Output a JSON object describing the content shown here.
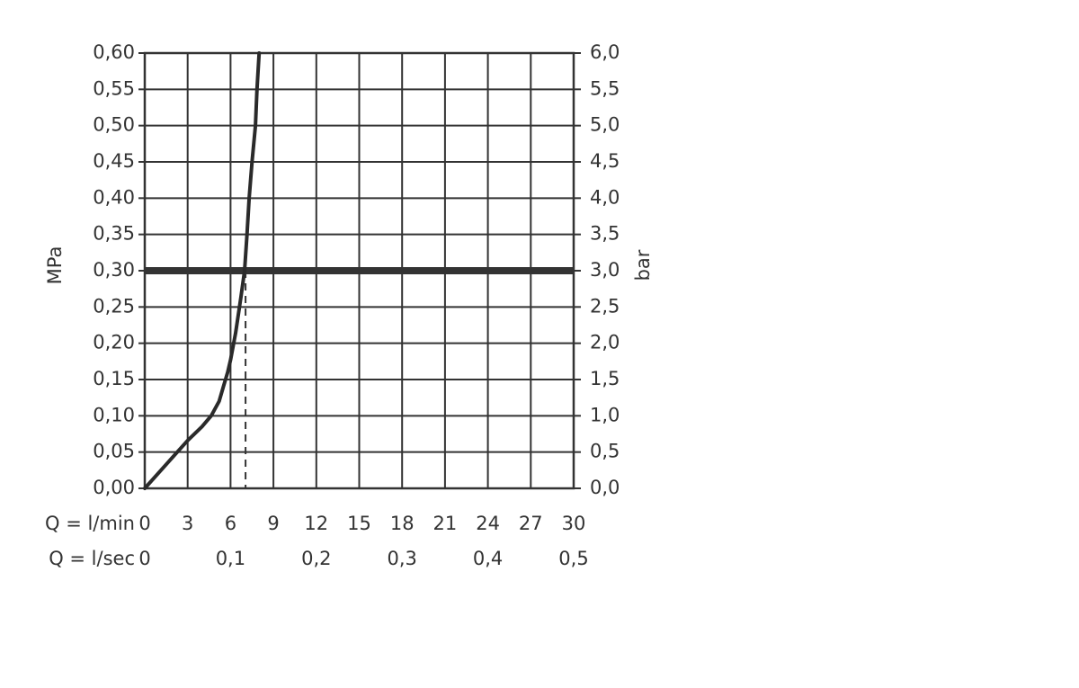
{
  "chart_data": {
    "type": "line",
    "y_label": "MPa",
    "y2_label": "bar",
    "x_label": "Q = l/min",
    "x2_label": "Q = l/sec",
    "x": [
      0,
      1.5,
      3,
      4,
      4.65,
      5.2,
      5.5,
      5.8,
      6.0,
      6.35,
      6.73,
      6.98,
      7.15,
      7.3,
      7.5,
      7.74,
      7.85,
      8.0
    ],
    "values": [
      0,
      0.033,
      0.066,
      0.085,
      0.1,
      0.12,
      0.14,
      0.16,
      0.177,
      0.214,
      0.264,
      0.3,
      0.35,
      0.4,
      0.45,
      0.5,
      0.55,
      0.6
    ],
    "color": "#2a2a2a",
    "xlim": [
      0,
      30
    ],
    "xticks": [
      0,
      3,
      6,
      9,
      12,
      15,
      18,
      21,
      24,
      27,
      30
    ],
    "x2lim": [
      0,
      0.5
    ],
    "x2ticks": [
      0,
      {
        "value": 0.1,
        "label": "0,1"
      },
      {
        "value": 0.2,
        "label": "0,2"
      },
      {
        "value": 0.3,
        "label": "0,3"
      },
      {
        "value": 0.4,
        "label": "0,4"
      },
      {
        "value": 0.5,
        "label": "0,5"
      }
    ],
    "ylim": [
      0,
      0.6
    ],
    "yticks": [
      {
        "value": 0,
        "label": "0,00"
      },
      {
        "value": 0.05,
        "label": "0,05"
      },
      {
        "value": 0.1,
        "label": "0,10"
      },
      {
        "value": 0.15,
        "label": "0,15"
      },
      {
        "value": 0.2,
        "label": "0,20"
      },
      {
        "value": 0.25,
        "label": "0,25"
      },
      {
        "value": 0.3,
        "label": "0,30"
      },
      {
        "value": 0.35,
        "label": "0,35"
      },
      {
        "value": 0.4,
        "label": "0,40"
      },
      {
        "value": 0.45,
        "label": "0,45"
      },
      {
        "value": 0.5,
        "label": "0,50"
      },
      {
        "value": 0.55,
        "label": "0,55"
      },
      {
        "value": 0.6,
        "label": "0,60"
      }
    ],
    "y2lim": [
      0,
      6
    ],
    "y2ticks": [
      {
        "value": 0,
        "label": "0,0"
      },
      {
        "value": 0.5,
        "label": "0,5"
      },
      {
        "value": 1,
        "label": "1,0"
      },
      {
        "value": 1.5,
        "label": "1,5"
      },
      {
        "value": 2,
        "label": "2,0"
      },
      {
        "value": 2.5,
        "label": "2,5"
      },
      {
        "value": 3,
        "label": "3,0"
      },
      {
        "value": 3.5,
        "label": "3,5"
      },
      {
        "value": 4,
        "label": "4,0"
      },
      {
        "value": 4.5,
        "label": "4,5"
      },
      {
        "value": 5,
        "label": "5,0"
      },
      {
        "value": 5.5,
        "label": "5,5"
      },
      {
        "value": 6,
        "label": "6,0"
      }
    ],
    "grid": true,
    "reference_line_y": 0.3,
    "reference_drop_x": 7.05
  }
}
